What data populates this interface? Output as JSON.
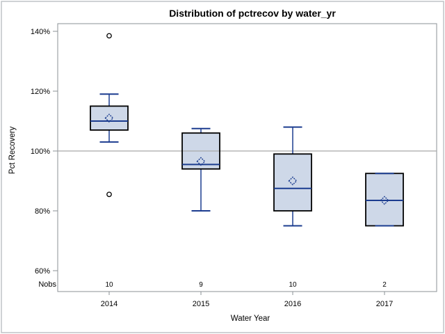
{
  "chart_data": {
    "type": "box",
    "title": "Distribution of pctrecov by water_yr",
    "xlabel": "Water Year",
    "ylabel": "Pct Recovery",
    "nobs_label": "Nobs",
    "y_axis": {
      "min": 60,
      "max": 140,
      "tick_format": "percent",
      "ticks": [
        {
          "value": 140,
          "label": "140%"
        },
        {
          "value": 120,
          "label": "120%"
        },
        {
          "value": 100,
          "label": "100%"
        },
        {
          "value": 80,
          "label": "80%"
        },
        {
          "value": 60,
          "label": "60%"
        }
      ]
    },
    "reference_line_y": 100,
    "grid": "off",
    "legend": "none",
    "categories": [
      "2014",
      "2015",
      "2016",
      "2017"
    ],
    "series": [
      {
        "category": "2014",
        "nobs": 10,
        "whisker_low": 103,
        "q1": 107,
        "median": 110,
        "q3": 115,
        "whisker_high": 119,
        "mean": 111,
        "outliers": [
          138.5,
          85.5
        ]
      },
      {
        "category": "2015",
        "nobs": 9,
        "whisker_low": 80,
        "q1": 94,
        "median": 95.5,
        "q3": 106,
        "whisker_high": 107.5,
        "mean": 96.5,
        "outliers": []
      },
      {
        "category": "2016",
        "nobs": 10,
        "whisker_low": 75,
        "q1": 80,
        "median": 87.5,
        "q3": 99,
        "whisker_high": 108,
        "mean": 90,
        "outliers": []
      },
      {
        "category": "2017",
        "nobs": 2,
        "whisker_low": 75,
        "q1": 75,
        "median": 83.5,
        "q3": 92.5,
        "whisker_high": 92.5,
        "mean": 83.5,
        "outliers": []
      }
    ],
    "colors": {
      "box_fill": "#ced8e8",
      "box_border": "#000000",
      "whisker": "#1b3c8f",
      "median": "#1b3c8f",
      "mean_marker": "#1b3c8f",
      "outlier": "#000000",
      "reference_line": "#a8a8a8",
      "frame": "#8b9096",
      "page_border": "#bfc3c7",
      "text": "#000000"
    }
  }
}
